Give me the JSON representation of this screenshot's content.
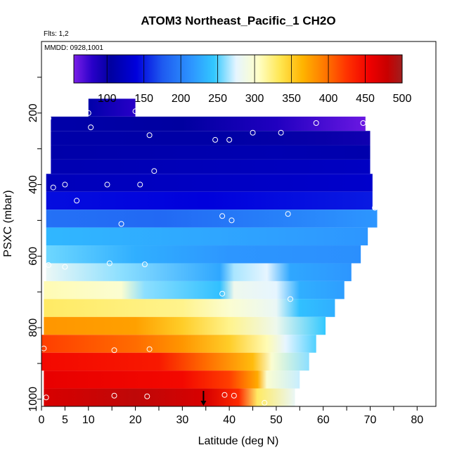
{
  "chart_data": {
    "type": "heatmap",
    "title": "ATOM3 Northeast_Pacific_1 CH2O",
    "flights_note": "Flts: 1,2",
    "date_note": "MMDD: 0928,1001",
    "xlabel": "Latitude (deg N)",
    "ylabel": "PSXC (mbar)",
    "xlim": [
      0,
      84
    ],
    "ylim": [
      1020,
      0
    ],
    "x_ticks": [
      0,
      5,
      10,
      20,
      30,
      40,
      50,
      60,
      70,
      80
    ],
    "y_ticks": [
      200,
      400,
      600,
      800,
      1000
    ],
    "colorbar": {
      "min": 55,
      "max": 500,
      "ticks": [
        100,
        150,
        200,
        250,
        300,
        350,
        400,
        450,
        500
      ],
      "stops": [
        {
          "v": 55,
          "c": "#7a1ee8"
        },
        {
          "v": 80,
          "c": "#2800c8"
        },
        {
          "v": 105,
          "c": "#0000a0"
        },
        {
          "v": 140,
          "c": "#0000dc"
        },
        {
          "v": 175,
          "c": "#1e5af0"
        },
        {
          "v": 215,
          "c": "#2d96ff"
        },
        {
          "v": 245,
          "c": "#32c8ff"
        },
        {
          "v": 275,
          "c": "#e6f5ff"
        },
        {
          "v": 305,
          "c": "#ffffc8"
        },
        {
          "v": 335,
          "c": "#ffe650"
        },
        {
          "v": 365,
          "c": "#ffb400"
        },
        {
          "v": 395,
          "c": "#ff7800"
        },
        {
          "v": 425,
          "c": "#ff3200"
        },
        {
          "v": 455,
          "c": "#f00000"
        },
        {
          "v": 480,
          "c": "#c80000"
        },
        {
          "v": 500,
          "c": "#a01e1e"
        }
      ]
    },
    "marker_latitude": 34.5,
    "layers": [
      {
        "p_top": 160,
        "p_bot": 210,
        "lat_min": 10,
        "lat_max": 20,
        "values": [
          {
            "lat": 10,
            "v": 110
          },
          {
            "lat": 20,
            "v": 80
          }
        ]
      },
      {
        "p_top": 210,
        "p_bot": 250,
        "lat_min": 2,
        "lat_max": 69,
        "values": [
          {
            "lat": 2,
            "v": 110
          },
          {
            "lat": 30,
            "v": 105
          },
          {
            "lat": 50,
            "v": 85
          },
          {
            "lat": 69,
            "v": 60
          }
        ]
      },
      {
        "p_top": 250,
        "p_bot": 290,
        "lat_min": 2,
        "lat_max": 70,
        "values": [
          {
            "lat": 2,
            "v": 110
          },
          {
            "lat": 40,
            "v": 108
          },
          {
            "lat": 60,
            "v": 100
          },
          {
            "lat": 70,
            "v": 95
          }
        ]
      },
      {
        "p_top": 290,
        "p_bot": 330,
        "lat_min": 2,
        "lat_max": 70,
        "values": [
          {
            "lat": 2,
            "v": 110
          },
          {
            "lat": 50,
            "v": 115
          },
          {
            "lat": 70,
            "v": 112
          }
        ]
      },
      {
        "p_top": 330,
        "p_bot": 370,
        "lat_min": 2,
        "lat_max": 70,
        "values": [
          {
            "lat": 2,
            "v": 115
          },
          {
            "lat": 40,
            "v": 120
          },
          {
            "lat": 70,
            "v": 125
          }
        ]
      },
      {
        "p_top": 370,
        "p_bot": 420,
        "lat_min": 1,
        "lat_max": 70.5,
        "values": [
          {
            "lat": 1,
            "v": 120
          },
          {
            "lat": 35,
            "v": 125
          },
          {
            "lat": 70.5,
            "v": 130
          }
        ]
      },
      {
        "p_top": 420,
        "p_bot": 470,
        "lat_min": 1,
        "lat_max": 70.5,
        "values": [
          {
            "lat": 1,
            "v": 145
          },
          {
            "lat": 35,
            "v": 140
          },
          {
            "lat": 70.5,
            "v": 150
          }
        ]
      },
      {
        "p_top": 470,
        "p_bot": 520,
        "lat_min": 1,
        "lat_max": 71.5,
        "values": [
          {
            "lat": 1,
            "v": 190
          },
          {
            "lat": 25,
            "v": 185
          },
          {
            "lat": 50,
            "v": 200
          },
          {
            "lat": 71.5,
            "v": 215
          }
        ]
      },
      {
        "p_top": 520,
        "p_bot": 570,
        "lat_min": 1,
        "lat_max": 69.5,
        "values": [
          {
            "lat": 1,
            "v": 235
          },
          {
            "lat": 35,
            "v": 225
          },
          {
            "lat": 69.5,
            "v": 215
          }
        ]
      },
      {
        "p_top": 570,
        "p_bot": 620,
        "lat_min": 1,
        "lat_max": 68,
        "values": [
          {
            "lat": 1,
            "v": 255
          },
          {
            "lat": 20,
            "v": 230
          },
          {
            "lat": 40,
            "v": 215
          },
          {
            "lat": 68,
            "v": 210
          }
        ]
      },
      {
        "p_top": 620,
        "p_bot": 670,
        "lat_min": 1,
        "lat_max": 66,
        "values": [
          {
            "lat": 1,
            "v": 280
          },
          {
            "lat": 17,
            "v": 260
          },
          {
            "lat": 38,
            "v": 225
          },
          {
            "lat": 41,
            "v": 265
          },
          {
            "lat": 48,
            "v": 275
          },
          {
            "lat": 53,
            "v": 225
          },
          {
            "lat": 66,
            "v": 215
          }
        ]
      },
      {
        "p_top": 670,
        "p_bot": 720,
        "lat_min": 0.5,
        "lat_max": 64.5,
        "values": [
          {
            "lat": 0.5,
            "v": 310
          },
          {
            "lat": 17,
            "v": 300
          },
          {
            "lat": 22,
            "v": 260
          },
          {
            "lat": 38,
            "v": 240
          },
          {
            "lat": 41,
            "v": 285
          },
          {
            "lat": 50,
            "v": 275
          },
          {
            "lat": 55,
            "v": 230
          },
          {
            "lat": 64.5,
            "v": 220
          }
        ]
      },
      {
        "p_top": 720,
        "p_bot": 770,
        "lat_min": 0.5,
        "lat_max": 62.5,
        "values": [
          {
            "lat": 0.5,
            "v": 330
          },
          {
            "lat": 30,
            "v": 320
          },
          {
            "lat": 40,
            "v": 300
          },
          {
            "lat": 50,
            "v": 280
          },
          {
            "lat": 55,
            "v": 240
          },
          {
            "lat": 62.5,
            "v": 230
          }
        ]
      },
      {
        "p_top": 770,
        "p_bot": 820,
        "lat_min": 0.5,
        "lat_max": 60.5,
        "values": [
          {
            "lat": 0.5,
            "v": 380
          },
          {
            "lat": 20,
            "v": 375
          },
          {
            "lat": 30,
            "v": 350
          },
          {
            "lat": 40,
            "v": 320
          },
          {
            "lat": 50,
            "v": 285
          },
          {
            "lat": 60.5,
            "v": 245
          }
        ]
      },
      {
        "p_top": 820,
        "p_bot": 870,
        "lat_min": 0,
        "lat_max": 58.5,
        "values": [
          {
            "lat": 0,
            "v": 420
          },
          {
            "lat": 20,
            "v": 400
          },
          {
            "lat": 30,
            "v": 380
          },
          {
            "lat": 40,
            "v": 350
          },
          {
            "lat": 48,
            "v": 310
          },
          {
            "lat": 52,
            "v": 275
          },
          {
            "lat": 58.5,
            "v": 250
          }
        ]
      },
      {
        "p_top": 870,
        "p_bot": 920,
        "lat_min": 0,
        "lat_max": 57,
        "values": [
          {
            "lat": 0,
            "v": 450
          },
          {
            "lat": 25,
            "v": 440
          },
          {
            "lat": 35,
            "v": 400
          },
          {
            "lat": 45,
            "v": 360
          },
          {
            "lat": 49,
            "v": 300
          },
          {
            "lat": 57,
            "v": 260
          }
        ]
      },
      {
        "p_top": 920,
        "p_bot": 970,
        "lat_min": 0.5,
        "lat_max": 55,
        "values": [
          {
            "lat": 0.5,
            "v": 460
          },
          {
            "lat": 30,
            "v": 450
          },
          {
            "lat": 40,
            "v": 420
          },
          {
            "lat": 46,
            "v": 370
          },
          {
            "lat": 48,
            "v": 300
          },
          {
            "lat": 55,
            "v": 270
          }
        ]
      },
      {
        "p_top": 970,
        "p_bot": 1020,
        "lat_min": 0.5,
        "lat_max": 54,
        "values": [
          {
            "lat": 0.5,
            "v": 470
          },
          {
            "lat": 20,
            "v": 485
          },
          {
            "lat": 35,
            "v": 470
          },
          {
            "lat": 42,
            "v": 430
          },
          {
            "lat": 46,
            "v": 330
          },
          {
            "lat": 54,
            "v": 280
          }
        ]
      }
    ],
    "sample_points": [
      [
        1.5,
        215
      ],
      [
        10,
        200
      ],
      [
        20,
        195
      ],
      [
        10.5,
        240
      ],
      [
        23,
        262
      ],
      [
        37,
        275
      ],
      [
        40,
        275
      ],
      [
        45,
        255
      ],
      [
        51,
        255
      ],
      [
        58.5,
        228
      ],
      [
        68.5,
        228
      ],
      [
        24,
        362
      ],
      [
        2.5,
        408
      ],
      [
        5,
        400
      ],
      [
        14,
        400
      ],
      [
        21,
        400
      ],
      [
        7.5,
        445
      ],
      [
        71,
        465
      ],
      [
        17,
        510
      ],
      [
        38.5,
        488
      ],
      [
        40.5,
        500
      ],
      [
        52.5,
        482
      ],
      [
        1.5,
        625
      ],
      [
        5,
        630
      ],
      [
        14.5,
        620
      ],
      [
        22,
        623
      ],
      [
        38.5,
        705
      ],
      [
        53,
        720
      ],
      [
        0.5,
        858
      ],
      [
        15.5,
        863
      ],
      [
        23,
        860
      ],
      [
        1,
        995
      ],
      [
        15.5,
        990
      ],
      [
        22.5,
        992
      ],
      [
        39,
        988
      ],
      [
        41,
        990
      ],
      [
        47.5,
        1010
      ]
    ]
  }
}
